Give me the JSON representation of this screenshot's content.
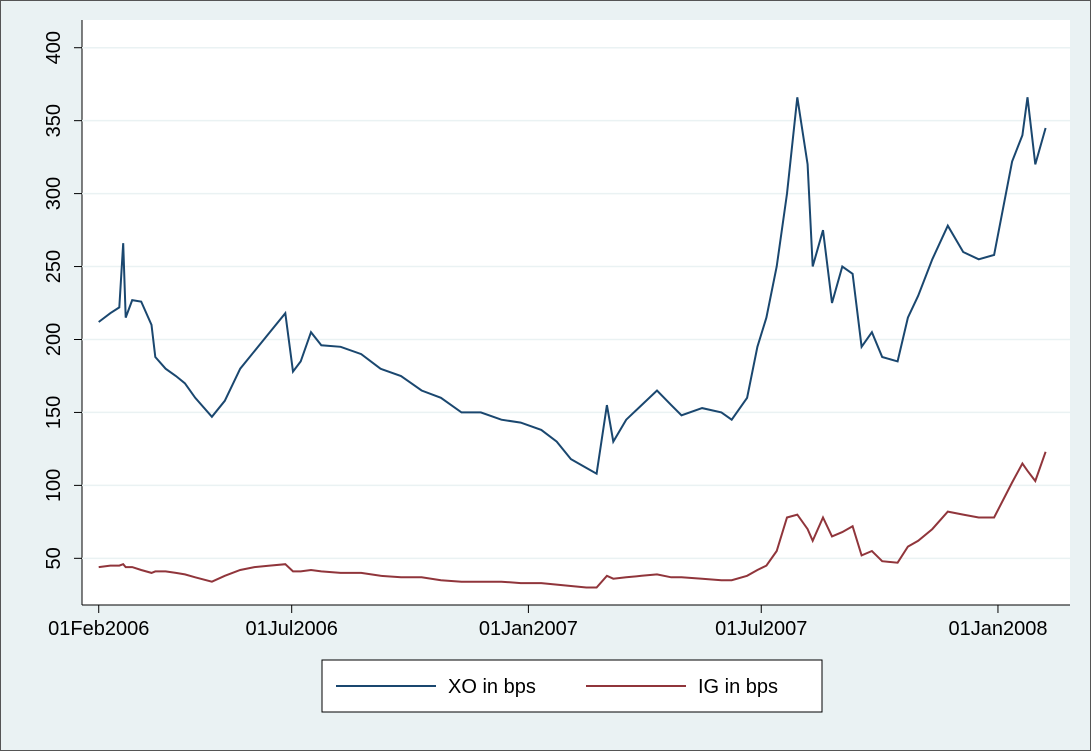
{
  "chart_data": {
    "type": "line",
    "x": [
      "2006-02-01",
      "2006-02-10",
      "2006-02-17",
      "2006-02-20",
      "2006-02-22",
      "2006-02-27",
      "2006-03-06",
      "2006-03-14",
      "2006-03-17",
      "2006-03-25",
      "2006-04-02",
      "2006-04-09",
      "2006-04-17",
      "2006-04-30",
      "2006-05-10",
      "2006-05-22",
      "2006-06-02",
      "2006-06-14",
      "2006-06-26",
      "2006-07-02",
      "2006-07-08",
      "2006-07-16",
      "2006-07-24",
      "2006-08-08",
      "2006-08-24",
      "2006-09-08",
      "2006-09-24",
      "2006-10-10",
      "2006-10-25",
      "2006-11-10",
      "2006-11-25",
      "2006-12-11",
      "2006-12-26",
      "2007-01-11",
      "2007-01-23",
      "2007-02-03",
      "2007-02-15",
      "2007-02-23",
      "2007-03-03",
      "2007-03-08",
      "2007-03-18",
      "2007-03-30",
      "2007-04-11",
      "2007-04-22",
      "2007-04-30",
      "2007-05-16",
      "2007-05-31",
      "2007-06-08",
      "2007-06-20",
      "2007-06-28",
      "2007-07-05",
      "2007-07-13",
      "2007-07-21",
      "2007-07-29",
      "2007-08-06",
      "2007-08-10",
      "2007-08-18",
      "2007-08-25",
      "2007-09-02",
      "2007-09-10",
      "2007-09-17",
      "2007-09-25",
      "2007-10-03",
      "2007-10-15",
      "2007-10-23",
      "2007-10-31",
      "2007-11-11",
      "2007-11-23",
      "2007-12-05",
      "2007-12-17",
      "2007-12-29",
      "2008-01-05",
      "2008-01-12",
      "2008-01-20",
      "2008-01-24",
      "2008-01-30",
      "2008-02-07"
    ],
    "series": [
      {
        "name": "XO in bps",
        "color": "#1a476f",
        "values": [
          212,
          218,
          222,
          266,
          215,
          227,
          226,
          210,
          188,
          180,
          175,
          170,
          160,
          147,
          158,
          180,
          192,
          205,
          218,
          178,
          185,
          205,
          196,
          195,
          190,
          180,
          175,
          165,
          160,
          150,
          150,
          145,
          143,
          138,
          130,
          118,
          112,
          108,
          155,
          130,
          145,
          155,
          165,
          155,
          148,
          153,
          150,
          145,
          160,
          195,
          215,
          250,
          300,
          366,
          320,
          250,
          275,
          225,
          250,
          245,
          195,
          205,
          188,
          185,
          215,
          230,
          255,
          278,
          260,
          255,
          258,
          290,
          322,
          340,
          366,
          320,
          345
        ]
      },
      {
        "name": "IG in bps",
        "color": "#90353b",
        "values": [
          44,
          45,
          45,
          46,
          44,
          44,
          42,
          40,
          41,
          41,
          40,
          39,
          37,
          34,
          38,
          42,
          44,
          45,
          46,
          41,
          41,
          42,
          41,
          40,
          40,
          38,
          37,
          37,
          35,
          34,
          34,
          34,
          33,
          33,
          32,
          31,
          30,
          30,
          38,
          36,
          37,
          38,
          39,
          37,
          37,
          36,
          35,
          35,
          38,
          42,
          45,
          55,
          78,
          80,
          70,
          62,
          78,
          65,
          68,
          72,
          52,
          55,
          48,
          47,
          58,
          62,
          70,
          82,
          80,
          78,
          78,
          90,
          102,
          115,
          110,
          103,
          123
        ]
      }
    ],
    "xlim": [
      "2006-01-19",
      "2008-02-26"
    ],
    "xticks": [
      {
        "value": "2006-02-01",
        "label": "01Feb2006"
      },
      {
        "value": "2006-07-01",
        "label": "01Jul2006"
      },
      {
        "value": "2007-01-01",
        "label": "01Jan2007"
      },
      {
        "value": "2007-07-01",
        "label": "01Jul2007"
      },
      {
        "value": "2008-01-01",
        "label": "01Jan2008"
      }
    ],
    "ylim": [
      18,
      419
    ],
    "yticks": [
      50,
      100,
      150,
      200,
      250,
      300,
      350,
      400
    ],
    "grid": true,
    "legend": "bottom"
  }
}
